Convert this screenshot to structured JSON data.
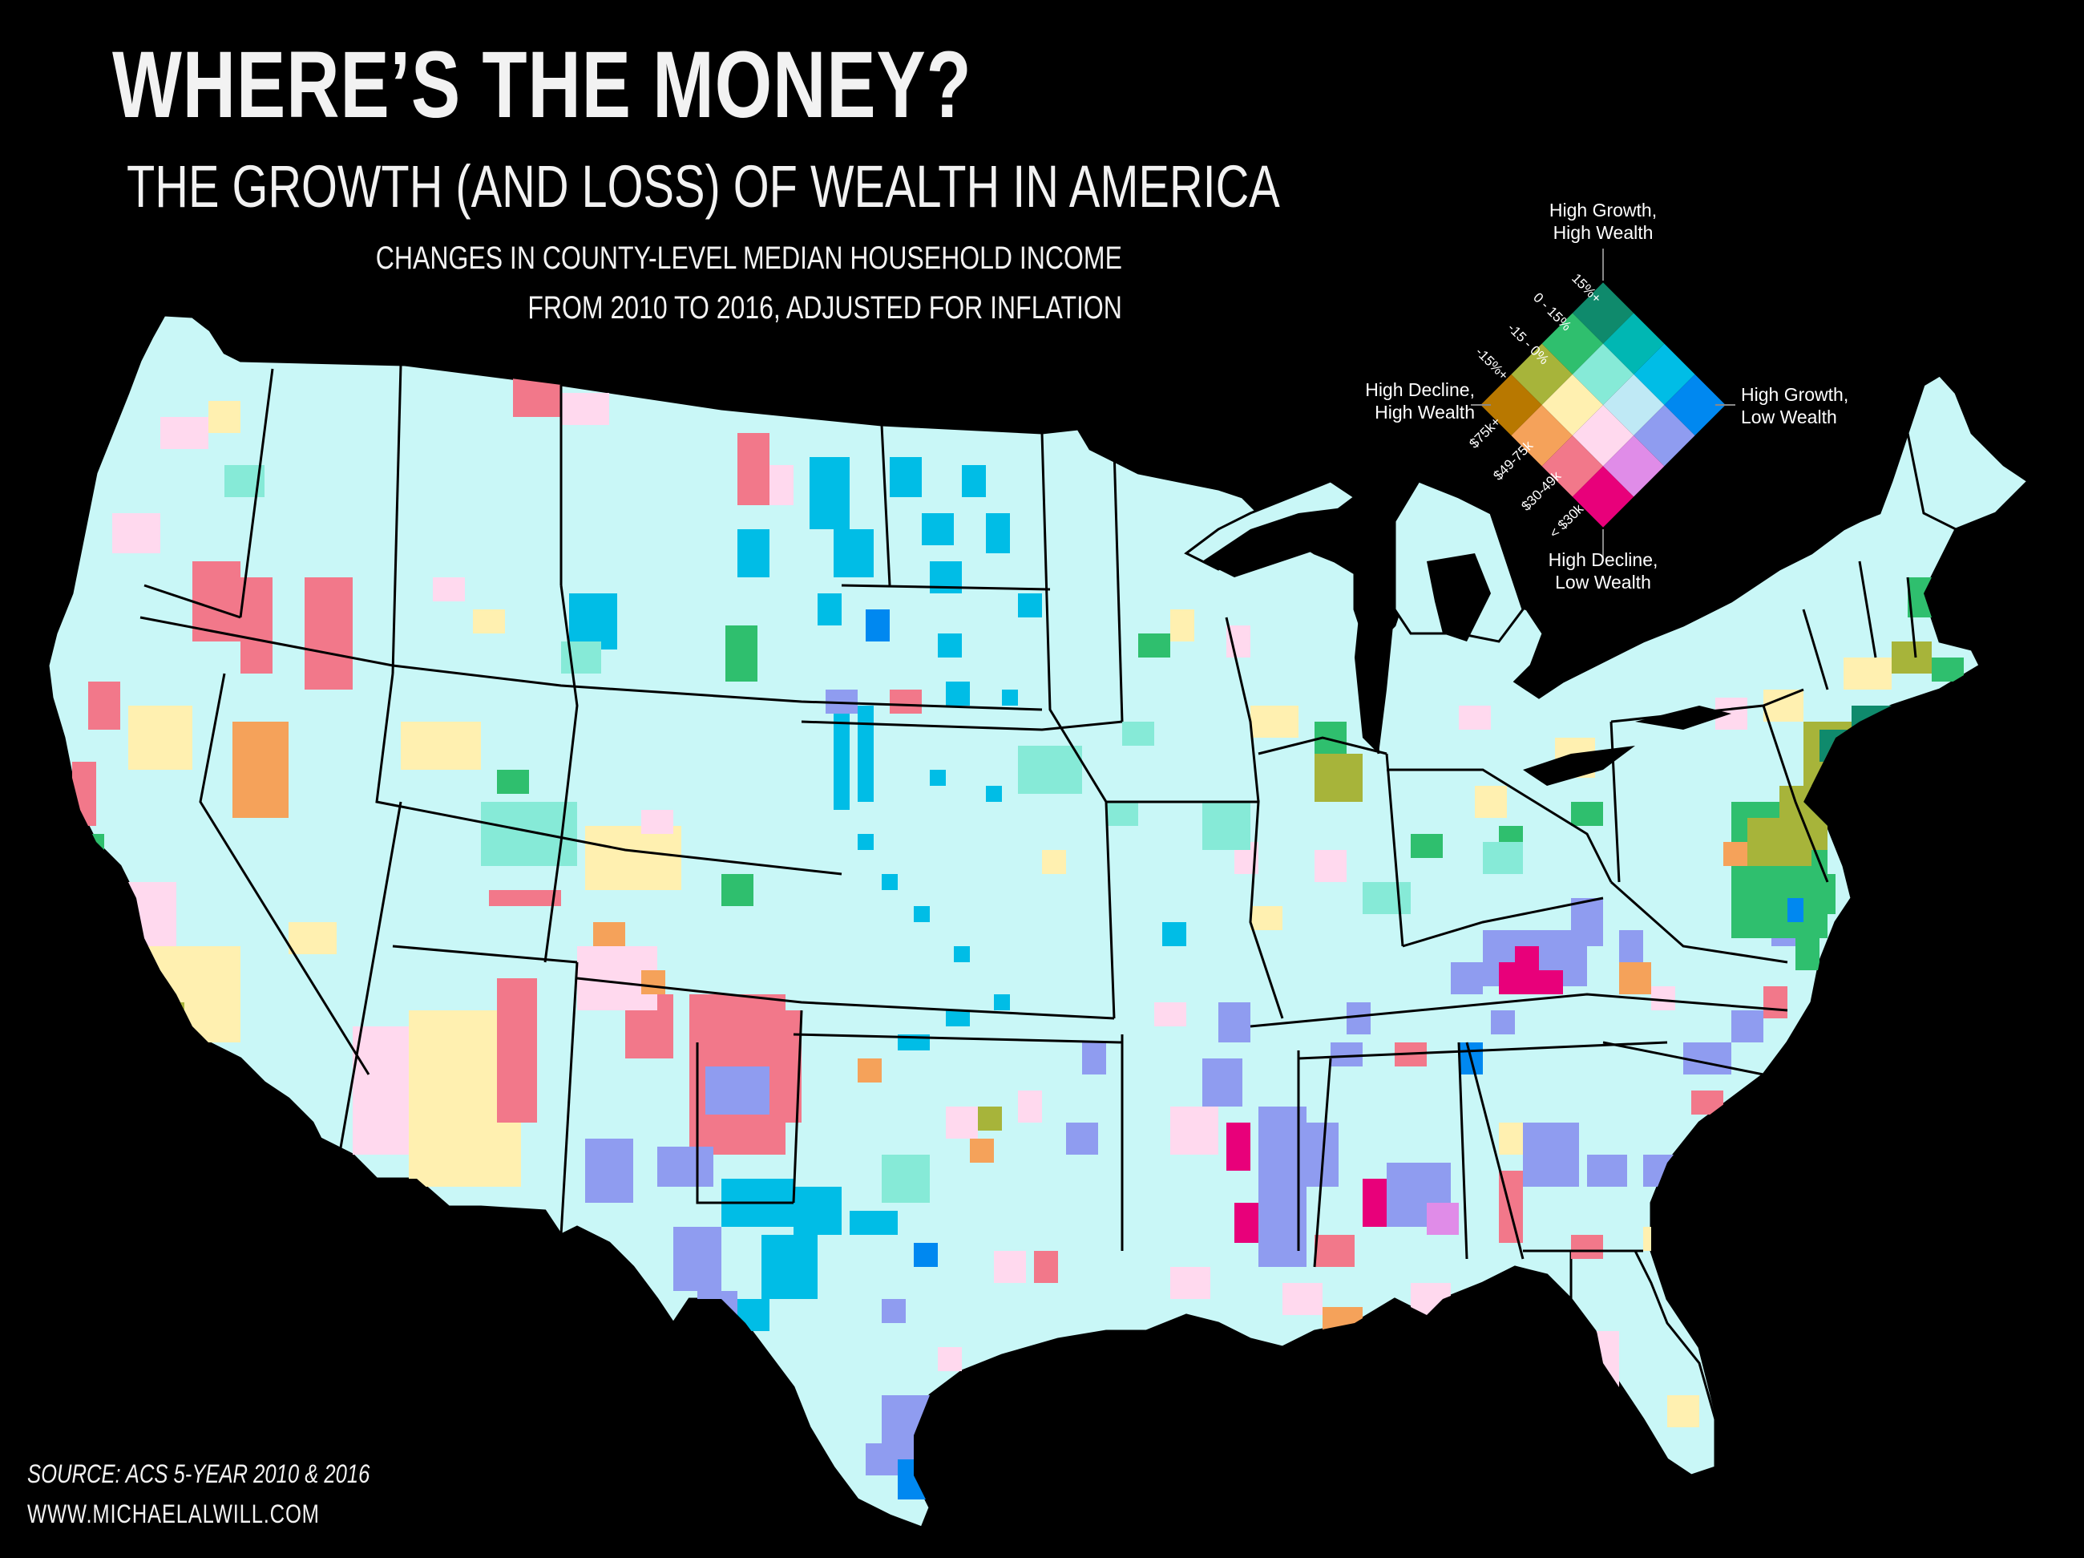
{
  "title": "WHERE’S THE MONEY?",
  "subtitle": "THE GROWTH (AND LOSS) OF WEALTH IN AMERICA",
  "description_line1": "CHANGES IN COUNTY-LEVEL MEDIAN HOUSEHOLD INCOME",
  "description_line2": "FROM 2010 TO 2016, ADJUSTED FOR INFLATION",
  "source": "SOURCE: ACS 5-YEAR 2010 & 2016",
  "website": "WWW.MICHAELALWILL.COM",
  "legend": {
    "top_label_1": "High Growth,",
    "top_label_2": "High Wealth",
    "left_label_1": "High Decline,",
    "left_label_2": "High Wealth",
    "right_label_1": "High Growth,",
    "right_label_2": "Low Wealth",
    "bottom_label_1": "High Decline,",
    "bottom_label_2": "Low Wealth",
    "growth_ticks": [
      "15%+",
      "0 - 15%",
      "-15 - 0%",
      "-15%+"
    ],
    "wealth_ticks": [
      "$75k+",
      "$49-75k",
      "$30-49k",
      "< $30k"
    ],
    "grid_colors": [
      [
        "#0f8a6c",
        "#00b7b3",
        "#00bde6",
        "#0088f0"
      ],
      [
        "#2fbf6e",
        "#86ead7",
        "#bfe9f5",
        "#8f9cf0"
      ],
      [
        "#a7b43a",
        "#fff0b0",
        "#ffd9ee",
        "#e08ce8"
      ],
      [
        "#b87800",
        "#f5a25a",
        "#f2788a",
        "#e8007a"
      ]
    ]
  },
  "colors": {
    "background": "#000000",
    "land_base": "#c9f7f7",
    "border": "#000000"
  }
}
